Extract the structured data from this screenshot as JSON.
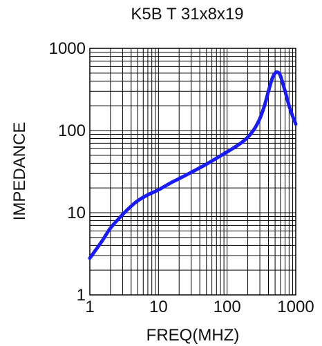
{
  "chart_data": {
    "type": "line",
    "title": "K5B T 31x8x19",
    "xlabel": "FREQ(MHZ)",
    "ylabel": "IMPEDANCE",
    "x_scale": "log",
    "y_scale": "log",
    "xlim": [
      1,
      1000
    ],
    "ylim": [
      1,
      1000
    ],
    "x_ticks": [
      "1",
      "10",
      "100",
      "1000"
    ],
    "y_ticks": [
      "1",
      "10",
      "100",
      "1000"
    ],
    "grid": true,
    "line_color": "#1a1aff",
    "series": [
      {
        "x": [
          1,
          1.5,
          2,
          3,
          4,
          5,
          7,
          10,
          15,
          20,
          30,
          50,
          70,
          100,
          150,
          200,
          250,
          300,
          350,
          400,
          450,
          500,
          550,
          600,
          700,
          800,
          900,
          1000
        ],
        "y": [
          2.8,
          4.5,
          6.5,
          9.5,
          12,
          14,
          16.5,
          19,
          23,
          26,
          31,
          39,
          46,
          55,
          68,
          83,
          105,
          140,
          200,
          300,
          420,
          500,
          510,
          460,
          300,
          200,
          150,
          120
        ]
      }
    ]
  }
}
